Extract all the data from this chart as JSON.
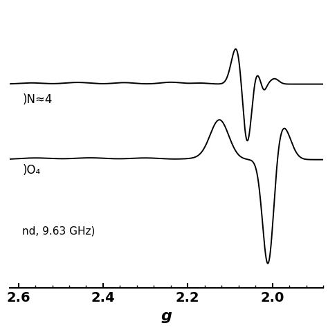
{
  "xlim": [
    2.62,
    1.88
  ],
  "xticks": [
    2.6,
    2.4,
    2.2,
    2.0
  ],
  "xlabel": "g",
  "background_color": "#ffffff",
  "line_color": "#000000",
  "label_top": ")N≈4",
  "label_bottom": ")O₄",
  "label_freq": "nd, 9.63 GHz)",
  "line_width": 1.4
}
